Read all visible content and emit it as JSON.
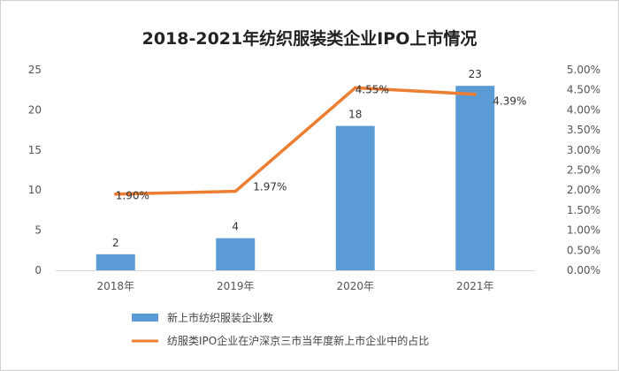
{
  "chart_data": {
    "type": "bar",
    "title": "2018-2021年纺织服装类企业IPO上市情况",
    "categories": [
      "2018年",
      "2019年",
      "2020年",
      "2021年"
    ],
    "series": [
      {
        "name": "新上市纺织服装企业数",
        "kind": "bar",
        "axis": "left",
        "values": [
          2,
          4,
          18,
          23
        ],
        "labels": [
          "2",
          "4",
          "18",
          "23"
        ],
        "color": "#5b9bd5"
      },
      {
        "name": "纺服类IPO企业在沪深京三市当年度新上市企业中的占比",
        "kind": "line",
        "axis": "right",
        "values": [
          1.9,
          1.97,
          4.55,
          4.39
        ],
        "labels": [
          "1.90%",
          "1.97%",
          "4.55%",
          "4.39%"
        ],
        "color": "#ed7d31"
      }
    ],
    "y_left": {
      "ylim": [
        0,
        25
      ],
      "ticks": [
        "0",
        "5",
        "10",
        "15",
        "20",
        "25"
      ]
    },
    "y_right": {
      "ylim": [
        0,
        5
      ],
      "ticks": [
        "0.00%",
        "0.50%",
        "1.00%",
        "1.50%",
        "2.00%",
        "2.50%",
        "3.00%",
        "3.50%",
        "4.00%",
        "4.50%",
        "5.00%"
      ]
    },
    "grid": false,
    "legend": "bottom"
  }
}
